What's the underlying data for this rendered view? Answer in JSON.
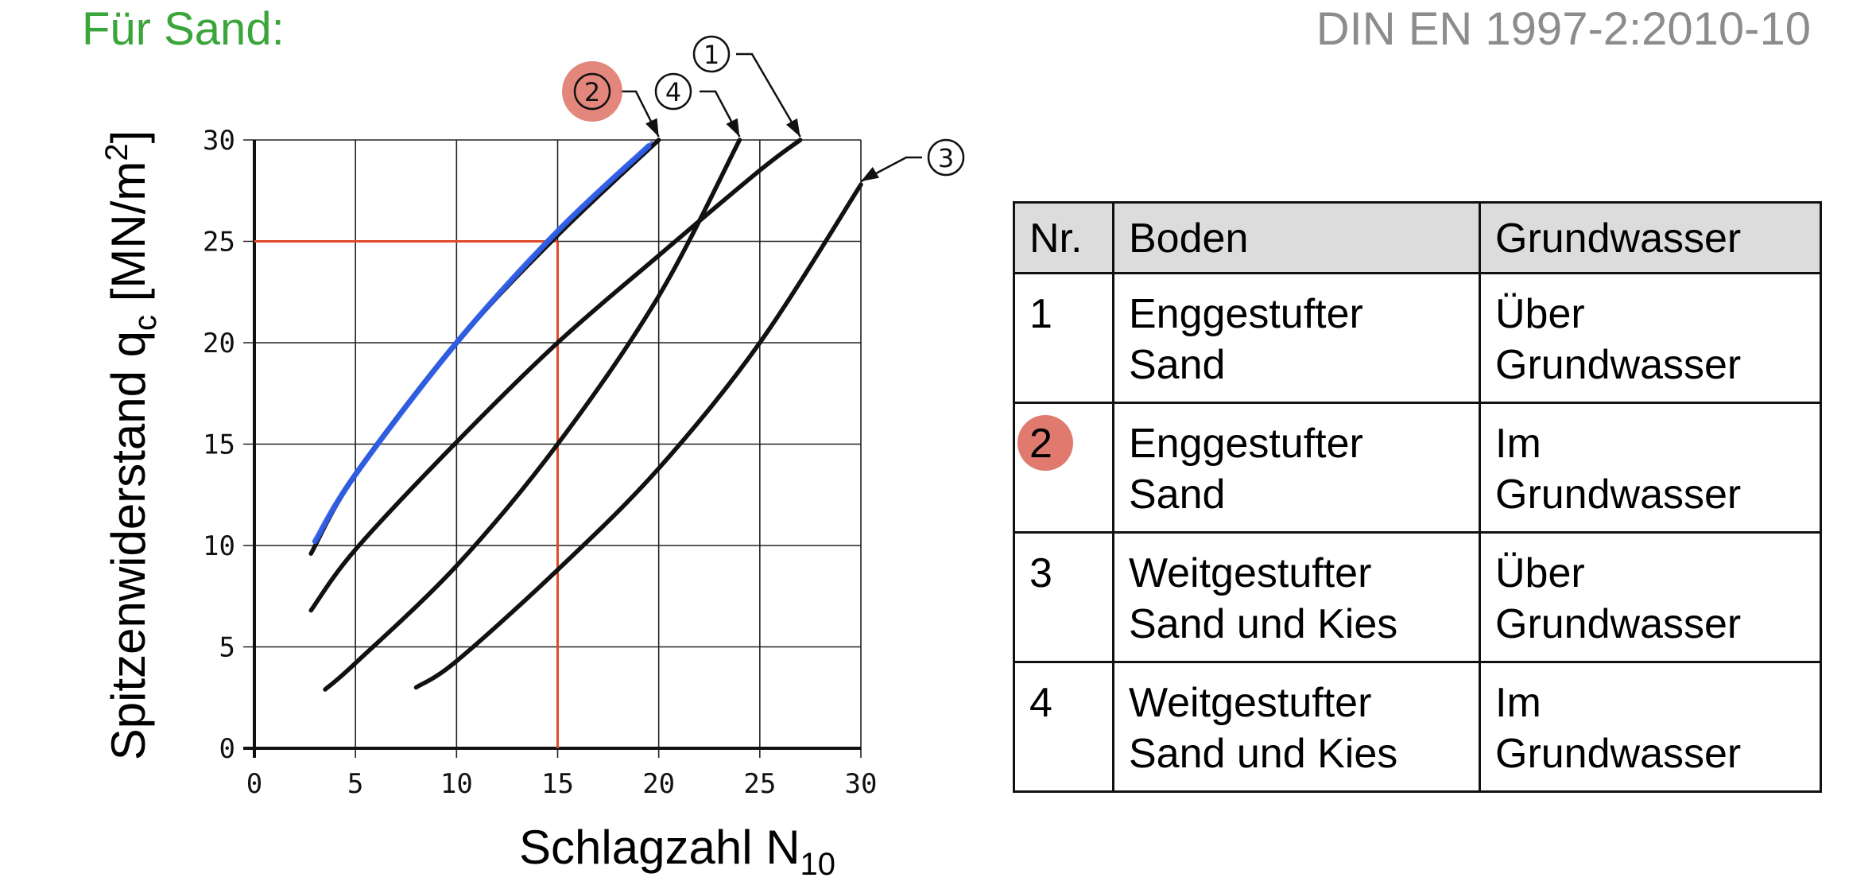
{
  "heading": "Für Sand:",
  "norm": "DIN EN 1997-2:2010-10",
  "colors": {
    "heading": "#3aa53a",
    "norm": "#8c8c8c",
    "curve": "#111111",
    "highlight_curve": "#2f5ee6",
    "reading_line": "#e04a2a",
    "marker": "#e07a6e"
  },
  "chart_data": {
    "type": "line",
    "xlabel": "Schlagzahl N",
    "xlabel_sub": "10",
    "ylabel": "Spitzenwiderstand q",
    "ylabel_sub": "c",
    "ylabel_unit_pre": " [MN/m",
    "ylabel_unit_sup": "2",
    "ylabel_unit_post": "]",
    "xlim": [
      0,
      30
    ],
    "ylim": [
      0,
      30
    ],
    "xticks": [
      0,
      5,
      10,
      15,
      20,
      25,
      30
    ],
    "yticks": [
      0,
      5,
      10,
      15,
      20,
      25,
      30
    ],
    "grid": true,
    "series": [
      {
        "name": "1",
        "x": [
          2.8,
          5,
          10,
          15,
          20,
          25,
          27
        ],
        "y": [
          6.8,
          9.8,
          15.1,
          20.0,
          24.3,
          28.5,
          30.0
        ]
      },
      {
        "name": "2",
        "x": [
          2.8,
          5,
          10,
          15,
          20
        ],
        "y": [
          9.6,
          13.5,
          20.0,
          25.3,
          30.0
        ]
      },
      {
        "name": "3",
        "x": [
          8,
          10,
          15,
          20,
          25,
          30
        ],
        "y": [
          3.0,
          4.3,
          8.8,
          13.8,
          20.0,
          27.8
        ]
      },
      {
        "name": "4",
        "x": [
          3.5,
          5,
          10,
          15,
          20,
          24
        ],
        "y": [
          2.9,
          4.2,
          9.0,
          15.0,
          22.3,
          30.0
        ]
      }
    ],
    "annotations": [
      {
        "label": "1",
        "target": [
          27,
          30
        ]
      },
      {
        "label": "2",
        "target": [
          20,
          30
        ],
        "highlighted": true
      },
      {
        "label": "3",
        "target": [
          30,
          27.8
        ]
      },
      {
        "label": "4",
        "target": [
          24,
          30
        ]
      }
    ],
    "highlight_stroke": {
      "x": [
        3,
        5,
        10,
        15,
        19.5
      ],
      "y": [
        10.2,
        13.5,
        20.0,
        25.5,
        29.7
      ]
    },
    "reading": {
      "x": 15,
      "y": 25
    }
  },
  "table": {
    "headers": [
      "Nr.",
      "Boden",
      "Grundwasser"
    ],
    "rows": [
      {
        "nr": "1",
        "boden_1": "Enggestufter",
        "boden_2": "Sand",
        "gw_1": "Über",
        "gw_2": "Grundwasser"
      },
      {
        "nr": "2",
        "boden_1": "Enggestufter",
        "boden_2": "Sand",
        "gw_1": "Im",
        "gw_2": "Grundwasser"
      },
      {
        "nr": "3",
        "boden_1": "Weitgestufter",
        "boden_2": "Sand und Kies",
        "gw_1": "Über",
        "gw_2": "Grundwasser"
      },
      {
        "nr": "4",
        "boden_1": "Weitgestufter",
        "boden_2": "Sand und Kies",
        "gw_1": "Im",
        "gw_2": "Grundwasser"
      }
    ],
    "highlighted_row": 1
  }
}
